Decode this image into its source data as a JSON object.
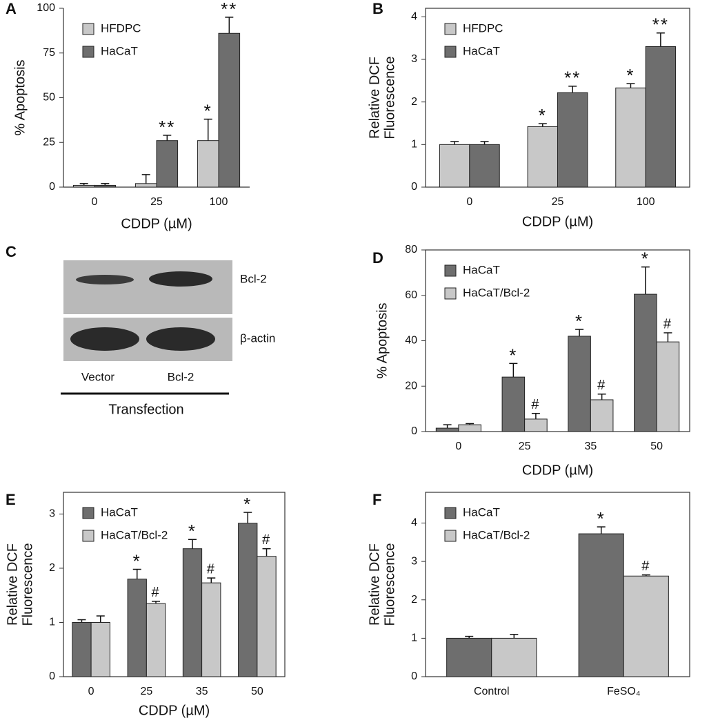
{
  "chart_data": [
    {
      "type": "bar",
      "label": "A",
      "y_label": [
        "% Apoptosis"
      ],
      "x_label": "CDDP (µM)",
      "categories": [
        "0",
        "25",
        "100"
      ],
      "ylim": [
        0,
        100
      ],
      "yticks": [
        0,
        25,
        50,
        75,
        100
      ],
      "legend": "upper left",
      "frame": false,
      "series": [
        {
          "name": "HFDPC",
          "color": "#c8c8c8",
          "values": [
            1,
            2,
            26
          ],
          "errors": [
            1,
            5,
            12
          ],
          "markers": [
            null,
            null,
            "*"
          ]
        },
        {
          "name": "HaCaT",
          "color": "#6e6e6e",
          "values": [
            1,
            26,
            86
          ],
          "errors": [
            1,
            3,
            9
          ],
          "markers": [
            null,
            "**",
            "**"
          ]
        }
      ]
    },
    {
      "type": "bar",
      "label": "B",
      "y_label": [
        "Relative DCF",
        "Fluorescence"
      ],
      "x_label": "CDDP (µM)",
      "categories": [
        "0",
        "25",
        "100"
      ],
      "ylim": [
        0,
        4.2
      ],
      "yticks": [
        0,
        1,
        2,
        3,
        4
      ],
      "legend": "upper left",
      "frame": true,
      "series": [
        {
          "name": "HFDPC",
          "color": "#c8c8c8",
          "values": [
            1.0,
            1.42,
            2.33
          ],
          "errors": [
            0.07,
            0.07,
            0.1
          ],
          "markers": [
            null,
            "*",
            "*"
          ]
        },
        {
          "name": "HaCaT",
          "color": "#6e6e6e",
          "values": [
            1.0,
            2.22,
            3.3
          ],
          "errors": [
            0.07,
            0.15,
            0.32
          ],
          "markers": [
            null,
            "**",
            "**"
          ]
        }
      ]
    },
    {
      "type": "bar",
      "label": "D",
      "y_label": [
        "% Apoptosis"
      ],
      "x_label": "CDDP (µM)",
      "categories": [
        "0",
        "25",
        "35",
        "50"
      ],
      "ylim": [
        0,
        80
      ],
      "yticks": [
        0,
        20,
        40,
        60,
        80
      ],
      "legend": "upper left",
      "frame": true,
      "series": [
        {
          "name": "HaCaT",
          "color": "#6e6e6e",
          "values": [
            1.5,
            24,
            42,
            60.5
          ],
          "errors": [
            1.5,
            6,
            3,
            12
          ],
          "markers": [
            null,
            "*",
            "*",
            "*"
          ]
        },
        {
          "name": "HaCaT/Bcl-2",
          "color": "#c8c8c8",
          "values": [
            3,
            5.5,
            14,
            39.5
          ],
          "errors": [
            0.5,
            2.5,
            2.5,
            4
          ],
          "markers": [
            null,
            "#",
            "#",
            "#"
          ]
        }
      ]
    },
    {
      "type": "bar",
      "label": "E",
      "y_label": [
        "Relative DCF",
        "Fluorescence"
      ],
      "x_label": "CDDP (µM)",
      "categories": [
        "0",
        "25",
        "35",
        "50"
      ],
      "ylim": [
        0,
        3.4
      ],
      "yticks": [
        0,
        1,
        2,
        3
      ],
      "legend": "upper left",
      "frame": true,
      "series": [
        {
          "name": "HaCaT",
          "color": "#6e6e6e",
          "values": [
            1.0,
            1.8,
            2.36,
            2.83
          ],
          "errors": [
            0.05,
            0.18,
            0.17,
            0.2
          ],
          "markers": [
            null,
            "*",
            "*",
            "*"
          ]
        },
        {
          "name": "HaCaT/Bcl-2",
          "color": "#c8c8c8",
          "values": [
            1.0,
            1.35,
            1.73,
            2.22
          ],
          "errors": [
            0.12,
            0.04,
            0.09,
            0.14
          ],
          "markers": [
            null,
            "#",
            "#",
            "#"
          ]
        }
      ]
    },
    {
      "type": "bar",
      "label": "F",
      "y_label": [
        "Relative DCF",
        "Fluorescence"
      ],
      "categories": [
        "Control",
        "FeSO₄"
      ],
      "ylim": [
        0,
        4.8
      ],
      "yticks": [
        0,
        1,
        2,
        3,
        4
      ],
      "legend": "upper left",
      "frame": true,
      "series": [
        {
          "name": "HaCaT",
          "color": "#6e6e6e",
          "values": [
            1.0,
            3.72
          ],
          "errors": [
            0.05,
            0.18
          ],
          "markers": [
            null,
            "*"
          ]
        },
        {
          "name": "HaCaT/Bcl-2",
          "color": "#c8c8c8",
          "values": [
            1.0,
            2.62
          ],
          "errors": [
            0.1,
            0.03
          ],
          "markers": [
            null,
            "#"
          ]
        }
      ]
    }
  ],
  "blot": {
    "label": "C",
    "bands": [
      "Bcl-2",
      "β-actin"
    ],
    "lanes": [
      "Vector",
      "Bcl-2"
    ],
    "group": "Transfection"
  }
}
